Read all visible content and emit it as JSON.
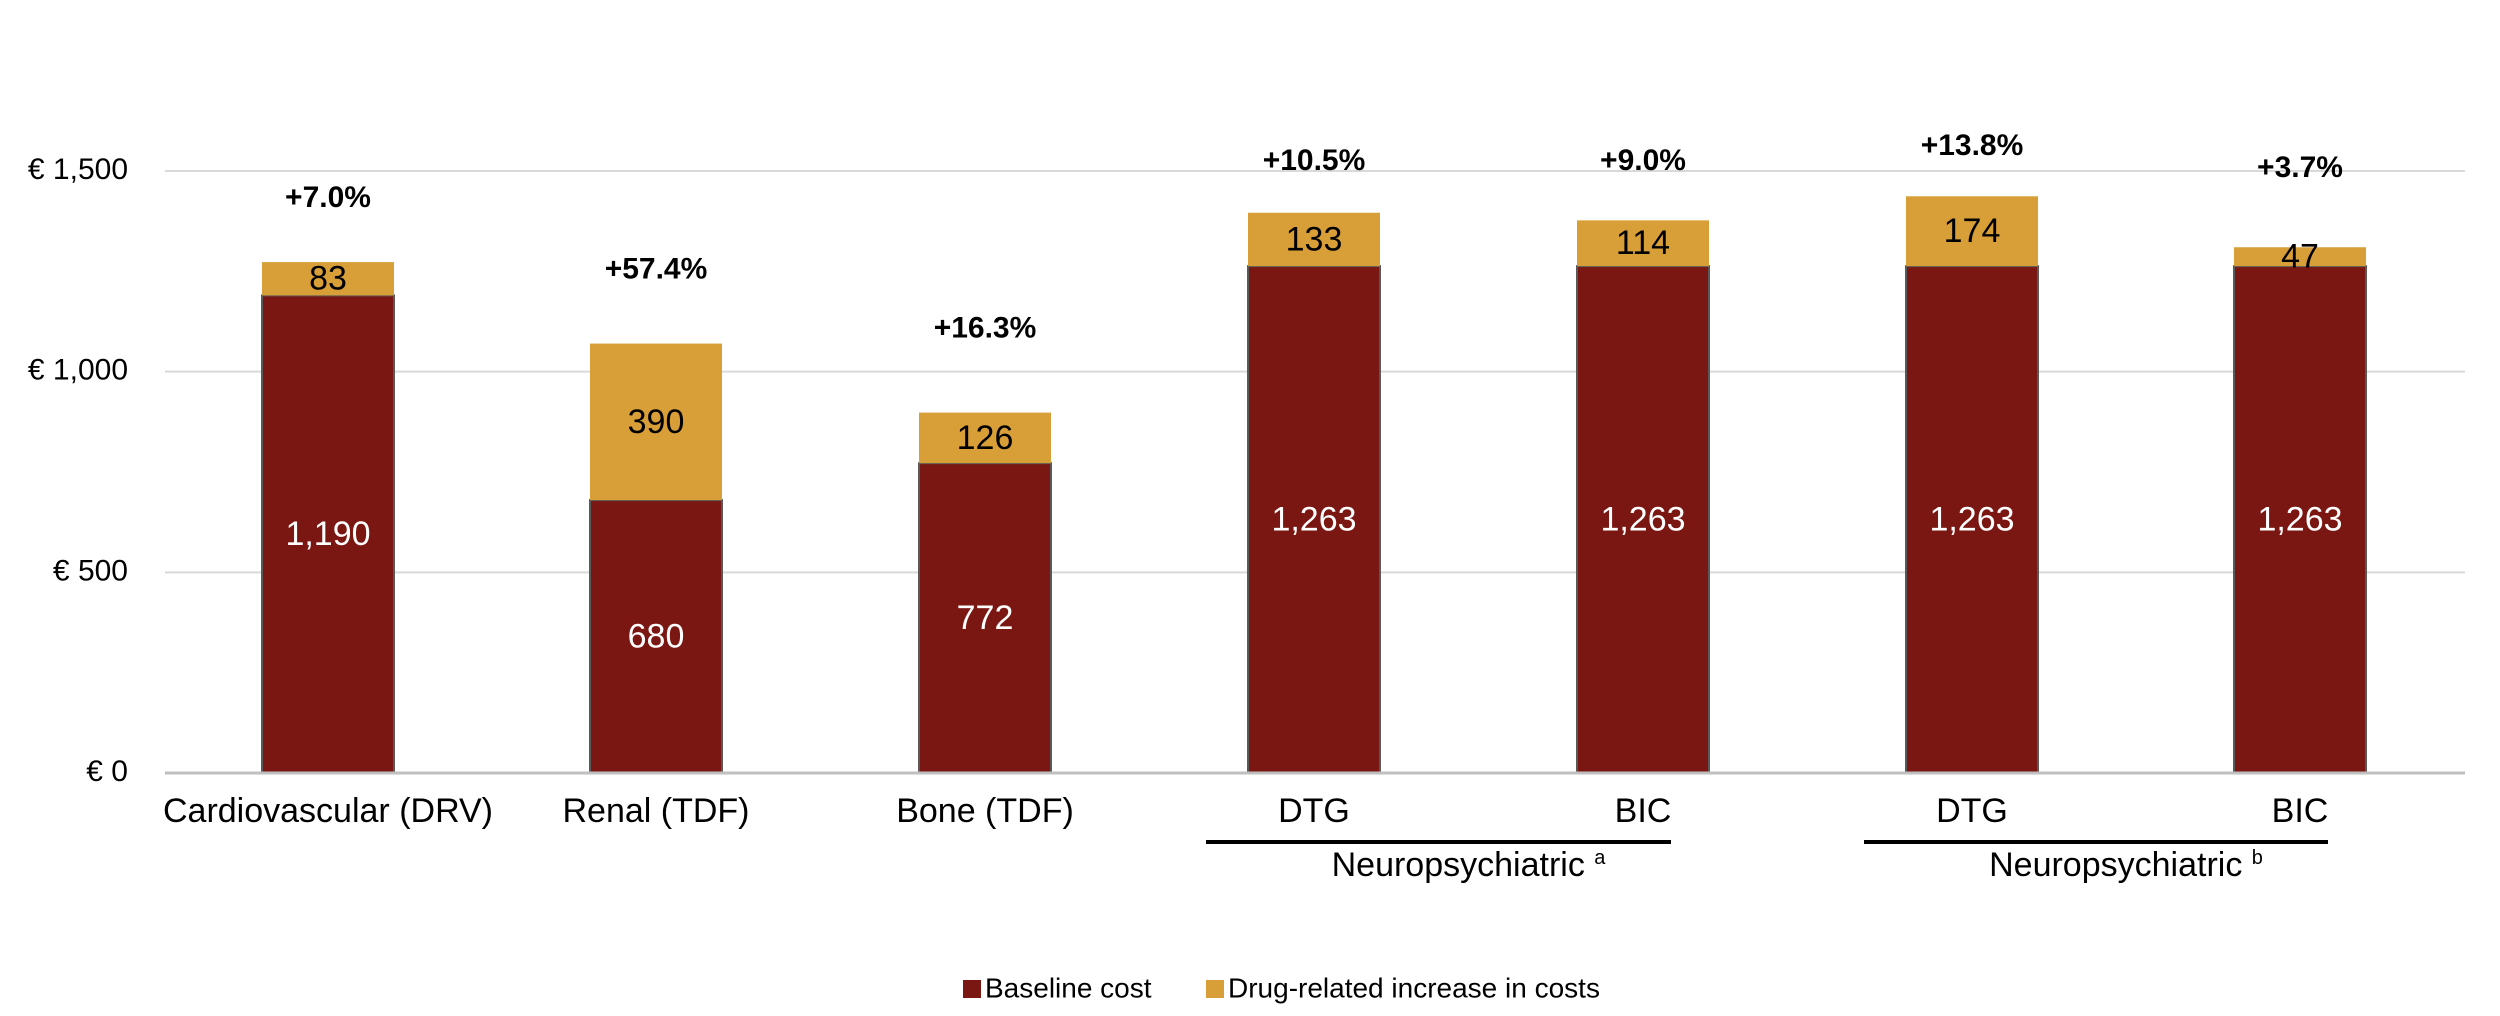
{
  "chart_data": {
    "type": "bar",
    "stacked": true,
    "categories": [
      "Cardiovascular (DRV)",
      "Renal (TDF)",
      "Bone (TDF)",
      "DTG",
      "BIC",
      "DTG",
      "BIC"
    ],
    "series": [
      {
        "name": "Baseline cost",
        "color": "#7b1712",
        "values": [
          1190,
          680,
          772,
          1263,
          1263,
          1263,
          1263
        ],
        "labels": [
          "1,190",
          "680",
          "772",
          "1,263",
          "1,263",
          "1,263",
          "1,263"
        ]
      },
      {
        "name": "Drug-related increase in costs",
        "color": "#d89e38",
        "values": [
          83,
          390,
          126,
          133,
          114,
          174,
          47
        ],
        "labels": [
          "83",
          "390",
          "126",
          "133",
          "114",
          "174",
          "47"
        ]
      }
    ],
    "percent_labels": [
      "+7.0%",
      "+57.4%",
      "+16.3%",
      "+10.5%",
      "+9.0%",
      "+13.8%",
      "+3.7%"
    ],
    "y_ticks": [
      0,
      500,
      1000,
      1500
    ],
    "y_tick_labels": [
      "€ 0",
      "€ 500",
      "€ 1,000",
      "€ 1,500"
    ],
    "ylim": [
      0,
      1500
    ],
    "groups": [
      {
        "label": "Neuropsychiatric",
        "superscript": "a",
        "categories": [
          3,
          4
        ]
      },
      {
        "label": "Neuropsychiatric",
        "superscript": "b",
        "categories": [
          5,
          6
        ]
      }
    ],
    "title": "",
    "xlabel": "",
    "ylabel": "",
    "grid": true,
    "legend_position": "bottom-center"
  }
}
